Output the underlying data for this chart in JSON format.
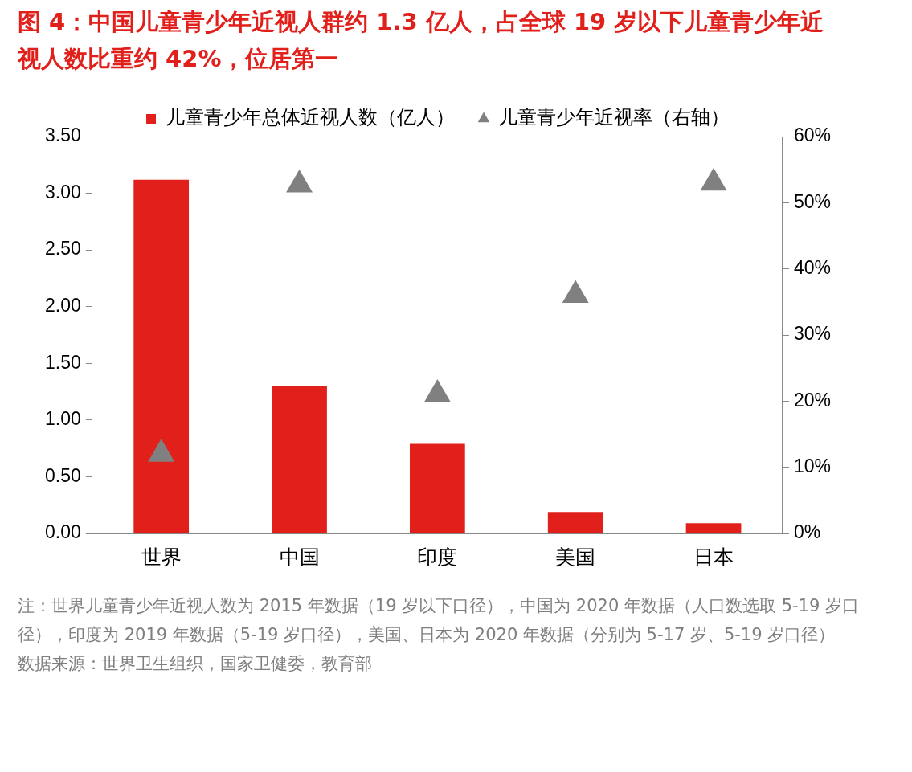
{
  "chart_data": {
    "type": "bar",
    "title": "图 4：中国儿童青少年近视人群约 1.3 亿人，占全球 19 岁以下儿童青少年近视人数比重约 42%，位居第一",
    "categories": [
      "世界",
      "中国",
      "印度",
      "美国",
      "日本"
    ],
    "series": [
      {
        "name": "儿童青少年总体近视人数（亿人）",
        "color": "#e2201b",
        "values": [
          3.12,
          1.3,
          0.79,
          0.19,
          0.09
        ]
      },
      {
        "type": "scatter",
        "name": "儿童青少年近视率（右轴）",
        "color": "#808080",
        "axis": "y2",
        "marker": "triangle",
        "x": [
          "世界",
          "中国",
          "印度",
          "美国",
          "日本"
        ],
        "values": [
          12,
          52.7,
          21,
          36,
          53
        ]
      }
    ],
    "ylim": [
      0,
      3.5
    ],
    "yticks": [
      {
        "value": 0,
        "label": "0.00"
      },
      {
        "value": 0.5,
        "label": "0.50"
      },
      {
        "value": 1,
        "label": "1.00"
      },
      {
        "value": 1.5,
        "label": "1.50"
      },
      {
        "value": 2,
        "label": "2.00"
      },
      {
        "value": 2.5,
        "label": "2.50"
      },
      {
        "value": 3,
        "label": "3.00"
      },
      {
        "value": 3.5,
        "label": "3.50"
      }
    ],
    "y2lim": [
      0,
      60
    ],
    "y2ticks": [
      {
        "value": 0,
        "label": "0%"
      },
      {
        "value": 10,
        "label": "10%"
      },
      {
        "value": 20,
        "label": "20%"
      },
      {
        "value": 30,
        "label": "30%"
      },
      {
        "value": 40,
        "label": "40%"
      },
      {
        "value": 50,
        "label": "50%"
      },
      {
        "value": 60,
        "label": "60%"
      }
    ],
    "grid": false,
    "legend": "top",
    "annotations": [
      "注：世界儿童青少年近视人数为 2015 年数据（19 岁以下口径），中国为 2020 年数据（人口数选取 5-19 岁口径），印度为 2019 年数据（5-19 岁口径），美国、日本为 2020 年数据（分别为 5-17 岁、5-19 岁口径）",
      "数据来源：世界卫生组织，国家卫健委，教育部"
    ]
  }
}
